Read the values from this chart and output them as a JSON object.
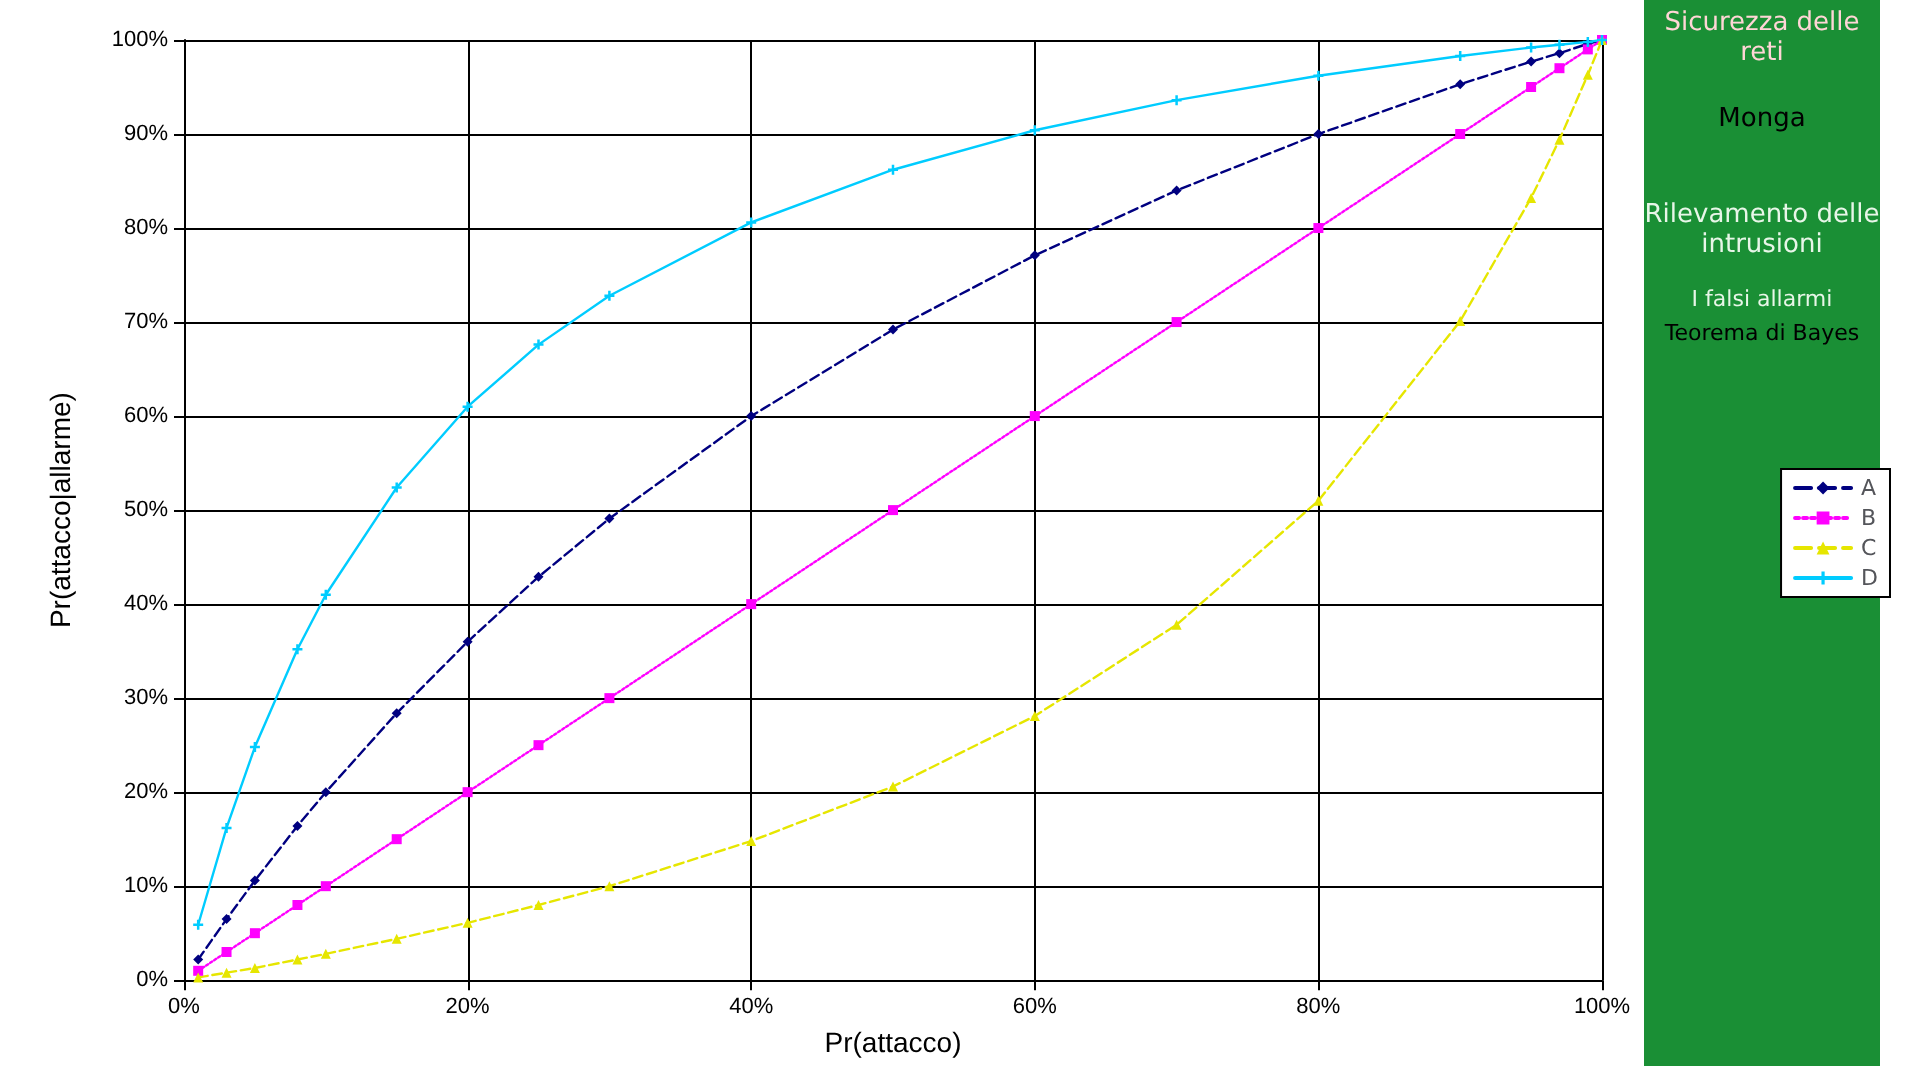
{
  "chart_data": {
    "type": "line",
    "xlabel": "Pr(attacco)",
    "ylabel": "Pr(attacco|allarme)",
    "x": [
      1,
      3,
      5,
      8,
      10,
      15,
      20,
      25,
      30,
      40,
      50,
      60,
      70,
      80,
      90,
      95,
      97,
      99,
      100
    ],
    "series": [
      {
        "name": "A",
        "color": "#000080",
        "marker": "diamond",
        "line_style": "dashed",
        "values": [
          2.2,
          6.5,
          10.6,
          16.4,
          20,
          28.4,
          36,
          42.9,
          49.1,
          60,
          69.2,
          77.1,
          84,
          90,
          95.3,
          97.7,
          98.6,
          99.6,
          100
        ]
      },
      {
        "name": "B",
        "color": "#ff00ff",
        "marker": "square",
        "line_style": "dotted",
        "values": [
          1,
          3,
          5,
          8,
          10,
          15,
          20,
          25,
          30,
          40,
          50,
          60,
          70,
          80,
          90,
          95,
          97,
          99,
          100
        ]
      },
      {
        "name": "C",
        "color": "#e6e600",
        "marker": "triangle",
        "line_style": "dashed",
        "values": [
          0.3,
          0.8,
          1.3,
          2.2,
          2.8,
          4.4,
          6.1,
          8,
          10,
          14.8,
          20.6,
          28.1,
          37.8,
          51,
          70.1,
          83.2,
          89.4,
          96.3,
          100
        ]
      },
      {
        "name": "D",
        "color": "#00ccff",
        "marker": "cross",
        "line_style": "solid",
        "values": [
          5.9,
          16.2,
          24.8,
          35.2,
          41,
          52.4,
          61,
          67.6,
          72.8,
          80.6,
          86.2,
          90.4,
          93.6,
          96.2,
          98.3,
          99.2,
          99.5,
          99.8,
          100
        ]
      }
    ],
    "xlim": [
      0,
      100
    ],
    "ylim": [
      0,
      100
    ],
    "xticks": [
      {
        "value": 0,
        "label": "0%"
      },
      {
        "value": 20,
        "label": "20%"
      },
      {
        "value": 40,
        "label": "40%"
      },
      {
        "value": 60,
        "label": "60%"
      },
      {
        "value": 80,
        "label": "80%"
      },
      {
        "value": 100,
        "label": "100%"
      }
    ],
    "yticks": [
      {
        "value": 0,
        "label": "0%"
      },
      {
        "value": 10,
        "label": "10%"
      },
      {
        "value": 20,
        "label": "20%"
      },
      {
        "value": 30,
        "label": "30%"
      },
      {
        "value": 40,
        "label": "40%"
      },
      {
        "value": 50,
        "label": "50%"
      },
      {
        "value": 60,
        "label": "60%"
      },
      {
        "value": 70,
        "label": "70%"
      },
      {
        "value": 80,
        "label": "80%"
      },
      {
        "value": 90,
        "label": "90%"
      },
      {
        "value": 100,
        "label": "100%"
      }
    ],
    "grid": true,
    "legend": "right",
    "annotations": [
      "Sicurezza delle reti",
      "Monga",
      "Rilevamento delle intrusioni",
      "I falsi allarmi",
      "Teorema di Bayes"
    ]
  }
}
